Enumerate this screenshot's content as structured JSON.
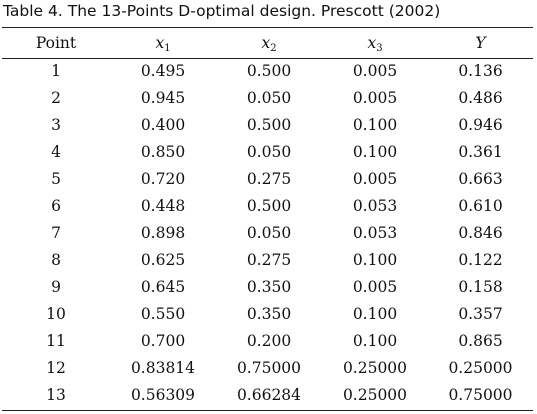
{
  "caption": "Table 4. The 13-Points D-optimal design. Prescott (2002)",
  "headers": {
    "point": "Point",
    "x1": {
      "base": "x",
      "sub": "1"
    },
    "x2": {
      "base": "x",
      "sub": "2"
    },
    "x3": {
      "base": "x",
      "sub": "3"
    },
    "y": "Y"
  },
  "rows": [
    [
      "1",
      "0.495",
      "0.500",
      "0.005",
      "0.136"
    ],
    [
      "2",
      "0.945",
      "0.050",
      "0.005",
      "0.486"
    ],
    [
      "3",
      "0.400",
      "0.500",
      "0.100",
      "0.946"
    ],
    [
      "4",
      "0.850",
      "0.050",
      "0.100",
      "0.361"
    ],
    [
      "5",
      "0.720",
      "0.275",
      "0.005",
      "0.663"
    ],
    [
      "6",
      "0.448",
      "0.500",
      "0.053",
      "0.610"
    ],
    [
      "7",
      "0.898",
      "0.050",
      "0.053",
      "0.846"
    ],
    [
      "8",
      "0.625",
      "0.275",
      "0.100",
      "0.122"
    ],
    [
      "9",
      "0.645",
      "0.350",
      "0.005",
      "0.158"
    ],
    [
      "10",
      "0.550",
      "0.350",
      "0.100",
      "0.357"
    ],
    [
      "11",
      "0.700",
      "0.200",
      "0.100",
      "0.865"
    ],
    [
      "12",
      "0.83814",
      "0.75000",
      "0.25000",
      "0.25000"
    ],
    [
      "13",
      "0.56309",
      "0.66284",
      "0.25000",
      "0.75000"
    ]
  ]
}
